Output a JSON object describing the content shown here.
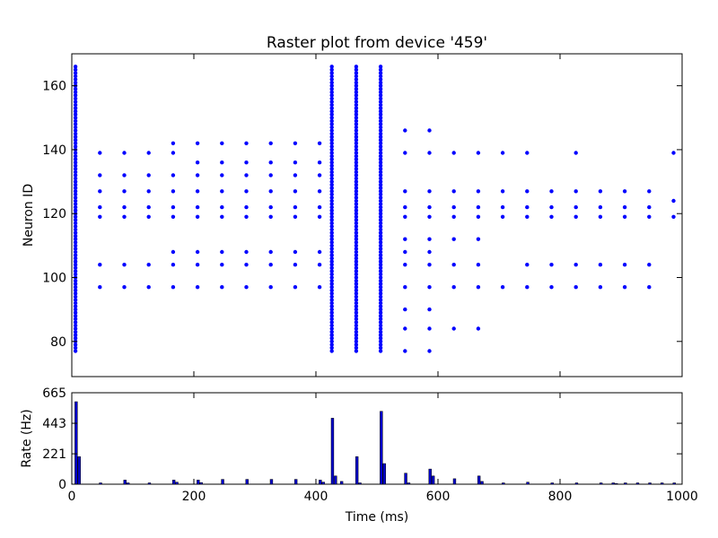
{
  "chart_data": [
    {
      "type": "scatter",
      "title": "Raster plot from device '459'",
      "ylabel": "Neuron ID",
      "xlim": [
        0,
        1000
      ],
      "ylim": [
        69,
        170
      ],
      "yticks": [
        80,
        100,
        120,
        140,
        160
      ],
      "marker_color": "#0000ff",
      "grid": false,
      "neuron_range": [
        77,
        166
      ],
      "spike_events": [
        {
          "x": 6,
          "neurons": "all"
        },
        {
          "x": 426,
          "neurons": "all"
        },
        {
          "x": 466,
          "neurons": "all"
        },
        {
          "x": 506,
          "neurons": "all"
        },
        {
          "x": 46,
          "neurons": [
            97,
            104,
            119,
            122,
            127,
            132,
            139
          ]
        },
        {
          "x": 86,
          "neurons": [
            97,
            104,
            119,
            122,
            127,
            132,
            139
          ]
        },
        {
          "x": 126,
          "neurons": [
            97,
            104,
            119,
            122,
            127,
            132,
            139
          ]
        },
        {
          "x": 166,
          "neurons": [
            97,
            104,
            108,
            119,
            122,
            127,
            132,
            139,
            142
          ]
        },
        {
          "x": 206,
          "neurons": [
            97,
            104,
            108,
            119,
            122,
            127,
            132,
            136,
            142
          ]
        },
        {
          "x": 246,
          "neurons": [
            97,
            104,
            108,
            119,
            122,
            127,
            132,
            136,
            142
          ]
        },
        {
          "x": 286,
          "neurons": [
            97,
            104,
            108,
            119,
            122,
            127,
            132,
            136,
            142
          ]
        },
        {
          "x": 326,
          "neurons": [
            97,
            104,
            108,
            119,
            122,
            127,
            132,
            136,
            142
          ]
        },
        {
          "x": 366,
          "neurons": [
            97,
            104,
            108,
            119,
            122,
            127,
            132,
            136,
            142
          ]
        },
        {
          "x": 406,
          "neurons": [
            97,
            104,
            108,
            119,
            122,
            127,
            132,
            136,
            142
          ]
        },
        {
          "x": 546,
          "neurons": [
            77,
            84,
            90,
            97,
            104,
            108,
            112,
            119,
            122,
            127,
            139,
            146
          ]
        },
        {
          "x": 586,
          "neurons": [
            77,
            84,
            90,
            97,
            104,
            108,
            112,
            119,
            122,
            127,
            139,
            146
          ]
        },
        {
          "x": 626,
          "neurons": [
            84,
            97,
            104,
            112,
            119,
            122,
            127,
            139
          ]
        },
        {
          "x": 666,
          "neurons": [
            84,
            97,
            104,
            112,
            119,
            122,
            127,
            139
          ]
        },
        {
          "x": 706,
          "neurons": [
            97,
            119,
            122,
            127,
            139
          ]
        },
        {
          "x": 746,
          "neurons": [
            97,
            104,
            119,
            122,
            127,
            139
          ]
        },
        {
          "x": 786,
          "neurons": [
            97,
            104,
            119,
            122,
            127
          ]
        },
        {
          "x": 826,
          "neurons": [
            97,
            104,
            119,
            122,
            127,
            139
          ]
        },
        {
          "x": 866,
          "neurons": [
            97,
            104,
            119,
            122,
            127
          ]
        },
        {
          "x": 906,
          "neurons": [
            97,
            104,
            119,
            122,
            127
          ]
        },
        {
          "x": 946,
          "neurons": [
            97,
            104,
            119,
            122,
            127
          ]
        },
        {
          "x": 986,
          "neurons": [
            119,
            124,
            139
          ]
        }
      ]
    },
    {
      "type": "bar",
      "xlabel": "Time (ms)",
      "ylabel": "Rate (Hz)",
      "xlim": [
        0,
        1000
      ],
      "ylim": [
        0,
        665
      ],
      "xticks": [
        0,
        200,
        400,
        600,
        800,
        1000
      ],
      "yticks": [
        0,
        221,
        443,
        665
      ],
      "bin_width_ms": 5,
      "bar_color": "#0000cc",
      "bin_start_ms": [
        5,
        10,
        45,
        85,
        90,
        125,
        165,
        170,
        205,
        210,
        245,
        285,
        325,
        365,
        405,
        410,
        425,
        430,
        440,
        465,
        470,
        505,
        510,
        545,
        550,
        585,
        590,
        625,
        665,
        670,
        705,
        745,
        785,
        825,
        865,
        885,
        890,
        905,
        925,
        945,
        965,
        985
      ],
      "values": [
        600,
        200,
        10,
        30,
        10,
        10,
        30,
        15,
        30,
        12,
        35,
        35,
        35,
        35,
        30,
        15,
        480,
        60,
        20,
        200,
        10,
        530,
        150,
        80,
        10,
        110,
        60,
        40,
        60,
        20,
        10,
        15,
        10,
        10,
        10,
        10,
        5,
        10,
        10,
        10,
        10,
        10
      ]
    }
  ]
}
